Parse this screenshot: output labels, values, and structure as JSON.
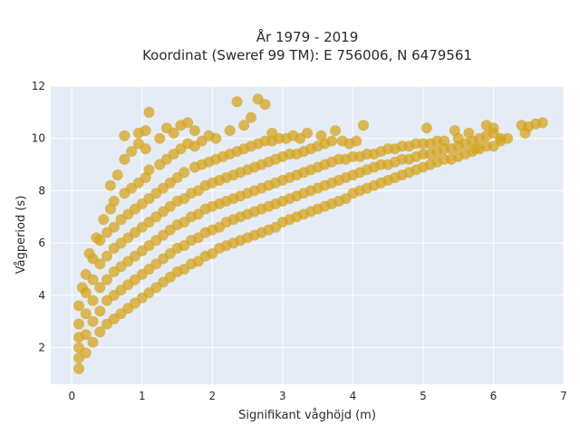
{
  "chart_data": {
    "type": "scatter",
    "title_line1": "År 1979 - 2019",
    "title_line2": "Koordinat (Sweref 99 TM): E 756006, N 6479561",
    "xlabel": "Signifikant våghöjd (m)",
    "ylabel": "Vågperiod (s)",
    "xlim": [
      -0.3,
      7.0
    ],
    "ylim": [
      0.6,
      12.0
    ],
    "x_ticks": [
      0,
      1,
      2,
      3,
      4,
      5,
      6,
      7
    ],
    "y_ticks": [
      2,
      4,
      6,
      8,
      10,
      12
    ],
    "grid": true,
    "background": "#e5ecf6",
    "marker_color": "#d4a420",
    "series": [
      {
        "points": [
          [
            0.1,
            1.2
          ],
          [
            0.1,
            1.6
          ],
          [
            0.1,
            2.0
          ],
          [
            0.1,
            2.4
          ],
          [
            0.1,
            2.9
          ],
          [
            0.1,
            3.6
          ],
          [
            0.15,
            4.3
          ],
          [
            0.2,
            1.8
          ],
          [
            0.2,
            2.5
          ],
          [
            0.2,
            3.3
          ],
          [
            0.2,
            4.1
          ],
          [
            0.2,
            4.8
          ],
          [
            0.25,
            5.6
          ],
          [
            0.3,
            2.2
          ],
          [
            0.3,
            3.0
          ],
          [
            0.3,
            3.8
          ],
          [
            0.3,
            4.6
          ],
          [
            0.3,
            5.4
          ],
          [
            0.35,
            6.2
          ],
          [
            0.4,
            2.6
          ],
          [
            0.4,
            3.4
          ],
          [
            0.4,
            4.3
          ],
          [
            0.4,
            5.2
          ],
          [
            0.4,
            6.1
          ],
          [
            0.45,
            6.9
          ],
          [
            0.5,
            2.9
          ],
          [
            0.5,
            3.8
          ],
          [
            0.5,
            4.6
          ],
          [
            0.5,
            5.5
          ],
          [
            0.5,
            6.4
          ],
          [
            0.55,
            7.3
          ],
          [
            0.55,
            8.2
          ],
          [
            0.6,
            3.1
          ],
          [
            0.6,
            4.0
          ],
          [
            0.6,
            4.9
          ],
          [
            0.6,
            5.8
          ],
          [
            0.6,
            6.6
          ],
          [
            0.6,
            7.6
          ],
          [
            0.65,
            8.6
          ],
          [
            0.7,
            3.3
          ],
          [
            0.7,
            4.2
          ],
          [
            0.7,
            5.1
          ],
          [
            0.7,
            6.0
          ],
          [
            0.7,
            6.9
          ],
          [
            0.75,
            7.9
          ],
          [
            0.75,
            9.2
          ],
          [
            0.75,
            10.1
          ],
          [
            0.8,
            3.5
          ],
          [
            0.8,
            4.4
          ],
          [
            0.8,
            5.3
          ],
          [
            0.8,
            6.2
          ],
          [
            0.8,
            7.1
          ],
          [
            0.85,
            8.1
          ],
          [
            0.85,
            9.5
          ],
          [
            0.9,
            3.7
          ],
          [
            0.9,
            4.6
          ],
          [
            0.9,
            5.5
          ],
          [
            0.9,
            6.4
          ],
          [
            0.9,
            7.3
          ],
          [
            0.95,
            8.3
          ],
          [
            0.95,
            9.8
          ],
          [
            0.95,
            10.2
          ],
          [
            1.0,
            3.9
          ],
          [
            1.0,
            4.8
          ],
          [
            1.0,
            5.7
          ],
          [
            1.0,
            6.6
          ],
          [
            1.0,
            7.5
          ],
          [
            1.05,
            8.5
          ],
          [
            1.05,
            9.6
          ],
          [
            1.05,
            10.3
          ],
          [
            1.1,
            4.1
          ],
          [
            1.1,
            5.0
          ],
          [
            1.1,
            5.9
          ],
          [
            1.1,
            6.8
          ],
          [
            1.1,
            7.7
          ],
          [
            1.1,
            8.8
          ],
          [
            1.1,
            11.0
          ],
          [
            1.2,
            4.3
          ],
          [
            1.2,
            5.2
          ],
          [
            1.2,
            6.1
          ],
          [
            1.2,
            7.0
          ],
          [
            1.2,
            7.9
          ],
          [
            1.25,
            9.0
          ],
          [
            1.25,
            10.0
          ],
          [
            1.3,
            4.5
          ],
          [
            1.3,
            5.4
          ],
          [
            1.3,
            6.3
          ],
          [
            1.3,
            7.2
          ],
          [
            1.3,
            8.1
          ],
          [
            1.35,
            9.2
          ],
          [
            1.35,
            10.4
          ],
          [
            1.4,
            4.7
          ],
          [
            1.4,
            5.6
          ],
          [
            1.4,
            6.5
          ],
          [
            1.4,
            7.4
          ],
          [
            1.4,
            8.3
          ],
          [
            1.45,
            9.4
          ],
          [
            1.45,
            10.2
          ],
          [
            1.5,
            4.9
          ],
          [
            1.5,
            5.8
          ],
          [
            1.5,
            6.7
          ],
          [
            1.5,
            7.6
          ],
          [
            1.5,
            8.5
          ],
          [
            1.55,
            9.6
          ],
          [
            1.55,
            10.5
          ],
          [
            1.6,
            5.0
          ],
          [
            1.6,
            5.9
          ],
          [
            1.6,
            6.8
          ],
          [
            1.6,
            7.7
          ],
          [
            1.6,
            8.7
          ],
          [
            1.65,
            9.8
          ],
          [
            1.65,
            10.6
          ],
          [
            1.7,
            5.2
          ],
          [
            1.7,
            6.1
          ],
          [
            1.7,
            7.0
          ],
          [
            1.7,
            7.9
          ],
          [
            1.75,
            8.9
          ],
          [
            1.75,
            9.7
          ],
          [
            1.75,
            10.3
          ],
          [
            1.8,
            5.3
          ],
          [
            1.8,
            6.2
          ],
          [
            1.8,
            7.1
          ],
          [
            1.8,
            8.0
          ],
          [
            1.85,
            9.0
          ],
          [
            1.85,
            9.9
          ],
          [
            1.9,
            5.5
          ],
          [
            1.9,
            6.4
          ],
          [
            1.9,
            7.3
          ],
          [
            1.9,
            8.2
          ],
          [
            1.95,
            9.1
          ],
          [
            1.95,
            10.1
          ],
          [
            2.0,
            5.6
          ],
          [
            2.0,
            6.5
          ],
          [
            2.0,
            7.4
          ],
          [
            2.0,
            8.3
          ],
          [
            2.05,
            9.2
          ],
          [
            2.05,
            10.0
          ],
          [
            2.1,
            5.8
          ],
          [
            2.1,
            6.6
          ],
          [
            2.1,
            7.5
          ],
          [
            2.1,
            8.4
          ],
          [
            2.15,
            9.3
          ],
          [
            2.2,
            5.9
          ],
          [
            2.2,
            6.8
          ],
          [
            2.2,
            7.6
          ],
          [
            2.2,
            8.5
          ],
          [
            2.25,
            9.4
          ],
          [
            2.25,
            10.3
          ],
          [
            2.3,
            6.0
          ],
          [
            2.3,
            6.9
          ],
          [
            2.3,
            7.7
          ],
          [
            2.3,
            8.6
          ],
          [
            2.35,
            9.5
          ],
          [
            2.35,
            11.4
          ],
          [
            2.4,
            6.1
          ],
          [
            2.4,
            7.0
          ],
          [
            2.4,
            7.8
          ],
          [
            2.4,
            8.7
          ],
          [
            2.45,
            9.6
          ],
          [
            2.45,
            10.5
          ],
          [
            2.5,
            6.2
          ],
          [
            2.5,
            7.1
          ],
          [
            2.5,
            7.9
          ],
          [
            2.5,
            8.8
          ],
          [
            2.55,
            9.7
          ],
          [
            2.55,
            10.8
          ],
          [
            2.6,
            6.3
          ],
          [
            2.6,
            7.2
          ],
          [
            2.6,
            8.0
          ],
          [
            2.6,
            8.9
          ],
          [
            2.65,
            9.8
          ],
          [
            2.65,
            11.5
          ],
          [
            2.7,
            6.4
          ],
          [
            2.7,
            7.3
          ],
          [
            2.7,
            8.1
          ],
          [
            2.7,
            9.0
          ],
          [
            2.75,
            9.9
          ],
          [
            2.75,
            11.3
          ],
          [
            2.8,
            6.5
          ],
          [
            2.8,
            7.4
          ],
          [
            2.8,
            8.2
          ],
          [
            2.8,
            9.1
          ],
          [
            2.85,
            9.9
          ],
          [
            2.85,
            10.2
          ],
          [
            2.9,
            6.6
          ],
          [
            2.9,
            7.5
          ],
          [
            2.9,
            8.3
          ],
          [
            2.9,
            9.2
          ],
          [
            2.95,
            10.0
          ],
          [
            3.0,
            6.8
          ],
          [
            3.0,
            7.6
          ],
          [
            3.0,
            8.4
          ],
          [
            3.0,
            9.3
          ],
          [
            3.05,
            10.0
          ],
          [
            3.1,
            6.9
          ],
          [
            3.1,
            7.7
          ],
          [
            3.1,
            8.5
          ],
          [
            3.1,
            9.4
          ],
          [
            3.15,
            10.1
          ],
          [
            3.2,
            7.0
          ],
          [
            3.2,
            7.8
          ],
          [
            3.2,
            8.6
          ],
          [
            3.2,
            9.4
          ],
          [
            3.25,
            10.0
          ],
          [
            3.3,
            7.1
          ],
          [
            3.3,
            7.9
          ],
          [
            3.3,
            8.7
          ],
          [
            3.3,
            9.5
          ],
          [
            3.35,
            10.2
          ],
          [
            3.4,
            7.2
          ],
          [
            3.4,
            8.0
          ],
          [
            3.4,
            8.8
          ],
          [
            3.4,
            9.6
          ],
          [
            3.5,
            7.3
          ],
          [
            3.5,
            8.1
          ],
          [
            3.5,
            8.9
          ],
          [
            3.5,
            9.7
          ],
          [
            3.55,
            10.1
          ],
          [
            3.6,
            7.4
          ],
          [
            3.6,
            8.2
          ],
          [
            3.6,
            9.0
          ],
          [
            3.6,
            9.8
          ],
          [
            3.7,
            7.5
          ],
          [
            3.7,
            8.3
          ],
          [
            3.7,
            9.1
          ],
          [
            3.7,
            9.9
          ],
          [
            3.75,
            10.3
          ],
          [
            3.8,
            7.6
          ],
          [
            3.8,
            8.4
          ],
          [
            3.8,
            9.2
          ],
          [
            3.85,
            9.9
          ],
          [
            3.9,
            7.7
          ],
          [
            3.9,
            8.5
          ],
          [
            3.9,
            9.2
          ],
          [
            3.95,
            9.8
          ],
          [
            4.0,
            7.9
          ],
          [
            4.0,
            8.6
          ],
          [
            4.0,
            9.3
          ],
          [
            4.05,
            9.9
          ],
          [
            4.1,
            8.0
          ],
          [
            4.1,
            8.7
          ],
          [
            4.1,
            9.3
          ],
          [
            4.15,
            10.5
          ],
          [
            4.2,
            8.1
          ],
          [
            4.2,
            8.8
          ],
          [
            4.2,
            9.4
          ],
          [
            4.3,
            8.2
          ],
          [
            4.3,
            8.9
          ],
          [
            4.3,
            9.4
          ],
          [
            4.4,
            8.3
          ],
          [
            4.4,
            9.0
          ],
          [
            4.4,
            9.5
          ],
          [
            4.5,
            8.4
          ],
          [
            4.5,
            9.0
          ],
          [
            4.5,
            9.6
          ],
          [
            4.6,
            8.5
          ],
          [
            4.6,
            9.1
          ],
          [
            4.6,
            9.6
          ],
          [
            4.7,
            8.6
          ],
          [
            4.7,
            9.2
          ],
          [
            4.7,
            9.7
          ],
          [
            4.8,
            8.7
          ],
          [
            4.8,
            9.2
          ],
          [
            4.8,
            9.7
          ],
          [
            4.9,
            8.8
          ],
          [
            4.9,
            9.3
          ],
          [
            4.9,
            9.8
          ],
          [
            5.0,
            8.9
          ],
          [
            5.0,
            9.4
          ],
          [
            5.0,
            9.8
          ],
          [
            5.05,
            10.4
          ],
          [
            5.1,
            9.0
          ],
          [
            5.1,
            9.4
          ],
          [
            5.1,
            9.8
          ],
          [
            5.2,
            9.1
          ],
          [
            5.2,
            9.5
          ],
          [
            5.2,
            9.9
          ],
          [
            5.3,
            9.2
          ],
          [
            5.3,
            9.6
          ],
          [
            5.3,
            9.9
          ],
          [
            5.4,
            9.2
          ],
          [
            5.4,
            9.6
          ],
          [
            5.45,
            10.3
          ],
          [
            5.5,
            9.3
          ],
          [
            5.5,
            9.7
          ],
          [
            5.5,
            10.0
          ],
          [
            5.6,
            9.4
          ],
          [
            5.6,
            9.8
          ],
          [
            5.65,
            10.2
          ],
          [
            5.7,
            9.5
          ],
          [
            5.7,
            9.9
          ],
          [
            5.75,
            9.6
          ],
          [
            5.8,
            9.6
          ],
          [
            5.8,
            10.0
          ],
          [
            5.9,
            9.7
          ],
          [
            5.9,
            10.1
          ],
          [
            5.9,
            10.5
          ],
          [
            6.0,
            9.7
          ],
          [
            6.0,
            10.2
          ],
          [
            6.0,
            10.4
          ],
          [
            6.1,
            9.9
          ],
          [
            6.1,
            10.0
          ],
          [
            6.2,
            10.0
          ],
          [
            6.4,
            10.5
          ],
          [
            6.45,
            10.2
          ],
          [
            6.5,
            10.45
          ],
          [
            6.6,
            10.55
          ],
          [
            6.7,
            10.6
          ]
        ]
      }
    ]
  }
}
